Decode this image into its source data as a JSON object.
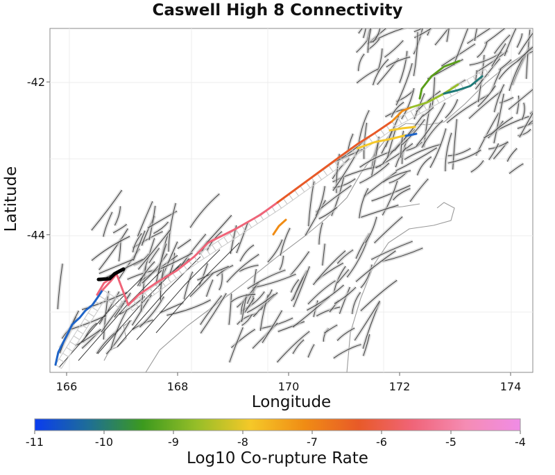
{
  "title": "Caswell High 8 Connectivity",
  "x_label": "Longitude",
  "y_label": "Latitude",
  "colorbar_label": "Log10 Co-rupture Rate",
  "x_ticks": [
    "166",
    "168",
    "170",
    "172",
    "174"
  ],
  "y_ticks": [
    "-42",
    "-44"
  ],
  "colorbar_ticks": [
    "-11",
    "-10",
    "-9",
    "-8",
    "-7",
    "-6",
    "-5",
    "-4"
  ],
  "colorbar_stops": [
    "#0a3cf0",
    "#1e6e96",
    "#3c9a1e",
    "#96be28",
    "#f5c828",
    "#f08c14",
    "#e85a28",
    "#f06478",
    "#f58cb4",
    "#f08ce6"
  ],
  "map_extent": {
    "lon_min": 165.7,
    "lon_max": 174.4,
    "lat_min": -45.8,
    "lat_max": -41.3
  },
  "source_fault_color": "#000000",
  "background_fault_color": "#444444",
  "subsection_outline_color": "#c8c8c8"
}
